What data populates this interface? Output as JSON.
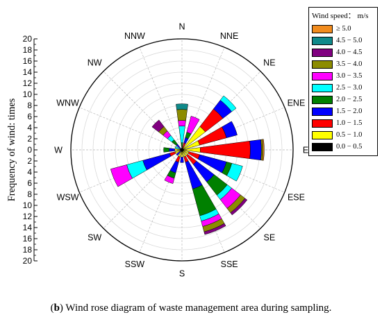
{
  "caption": {
    "prefix": "(",
    "bold": "b",
    "rest": ") Wind rose diagram of waste management area during sampling."
  },
  "chart_data": {
    "type": "wind-rose",
    "ylabel": "Frequency of wind: times",
    "radial_max": 20,
    "radial_ticks": [
      0,
      2,
      4,
      6,
      8,
      10,
      12,
      14,
      16,
      18,
      20
    ],
    "grid": true,
    "legend_position": "top-right",
    "legend_title": "Wind speed： m/s",
    "directions": [
      "N",
      "NNE",
      "NE",
      "ENE",
      "E",
      "ESE",
      "SE",
      "SSE",
      "S",
      "SSW",
      "SW",
      "WSW",
      "W",
      "WNW",
      "NW",
      "NNW"
    ],
    "series": [
      {
        "name": "≥ 5.0",
        "color": "#f28c1e",
        "values": [
          0,
          0,
          0,
          0,
          0.2,
          0,
          0,
          0,
          0,
          0,
          0,
          0,
          0,
          0,
          0,
          0
        ]
      },
      {
        "name": "4.5 − 5.0",
        "color": "#0f8a8a",
        "values": [
          1,
          0,
          0,
          0,
          0,
          0,
          0,
          0,
          0,
          0,
          0,
          0,
          0,
          0,
          0,
          0
        ]
      },
      {
        "name": "4.0 − 4.5",
        "color": "#800080",
        "values": [
          0,
          0,
          0,
          0,
          0,
          0,
          0.5,
          0.5,
          0,
          0,
          0,
          0,
          0,
          0,
          1.5,
          0
        ]
      },
      {
        "name": "3.5 − 4.0",
        "color": "#8c8c00",
        "values": [
          2,
          0,
          0,
          0,
          0.3,
          0,
          1,
          1,
          0,
          0,
          0,
          0,
          0,
          0,
          1,
          0
        ]
      },
      {
        "name": "3.0 − 3.5",
        "color": "#ff00ff",
        "values": [
          1,
          3,
          0,
          0,
          0,
          0,
          2,
          1,
          0,
          1,
          0,
          3,
          0,
          0,
          1,
          0
        ]
      },
      {
        "name": "2.5 − 3.0",
        "color": "#00ffff",
        "values": [
          3,
          0,
          1,
          0,
          0,
          2,
          1,
          1,
          0,
          0,
          0,
          3,
          0,
          1,
          1,
          0
        ]
      },
      {
        "name": "2.0 − 2.5",
        "color": "#008000",
        "values": [
          1,
          1,
          0,
          0,
          0,
          1,
          3,
          5,
          0,
          1,
          0,
          0,
          1,
          0,
          1,
          0
        ]
      },
      {
        "name": "1.5 − 2.0",
        "color": "#0000ff",
        "values": [
          0,
          1,
          2,
          2,
          2,
          5,
          4,
          5,
          1,
          2,
          1,
          5,
          1,
          0,
          1,
          0
        ]
      },
      {
        "name": "1.0 − 1.5",
        "color": "#ff0000",
        "values": [
          0,
          1,
          4,
          5,
          9,
          2,
          2,
          1,
          0,
          1,
          0,
          1,
          0,
          0,
          0,
          0
        ]
      },
      {
        "name": "0.5 − 1.0",
        "color": "#ffff00",
        "values": [
          0,
          0,
          5,
          3,
          3,
          1,
          1,
          1,
          1,
          1,
          0,
          1,
          1,
          0,
          0,
          0
        ]
      },
      {
        "name": "0.0 − 0.5",
        "color": "#000000",
        "values": [
          0.3,
          0.3,
          0.3,
          0.3,
          0.3,
          0.3,
          0.3,
          0.3,
          0.3,
          0.3,
          0.3,
          0.3,
          0.3,
          0.3,
          0.3,
          0.3
        ]
      }
    ]
  }
}
